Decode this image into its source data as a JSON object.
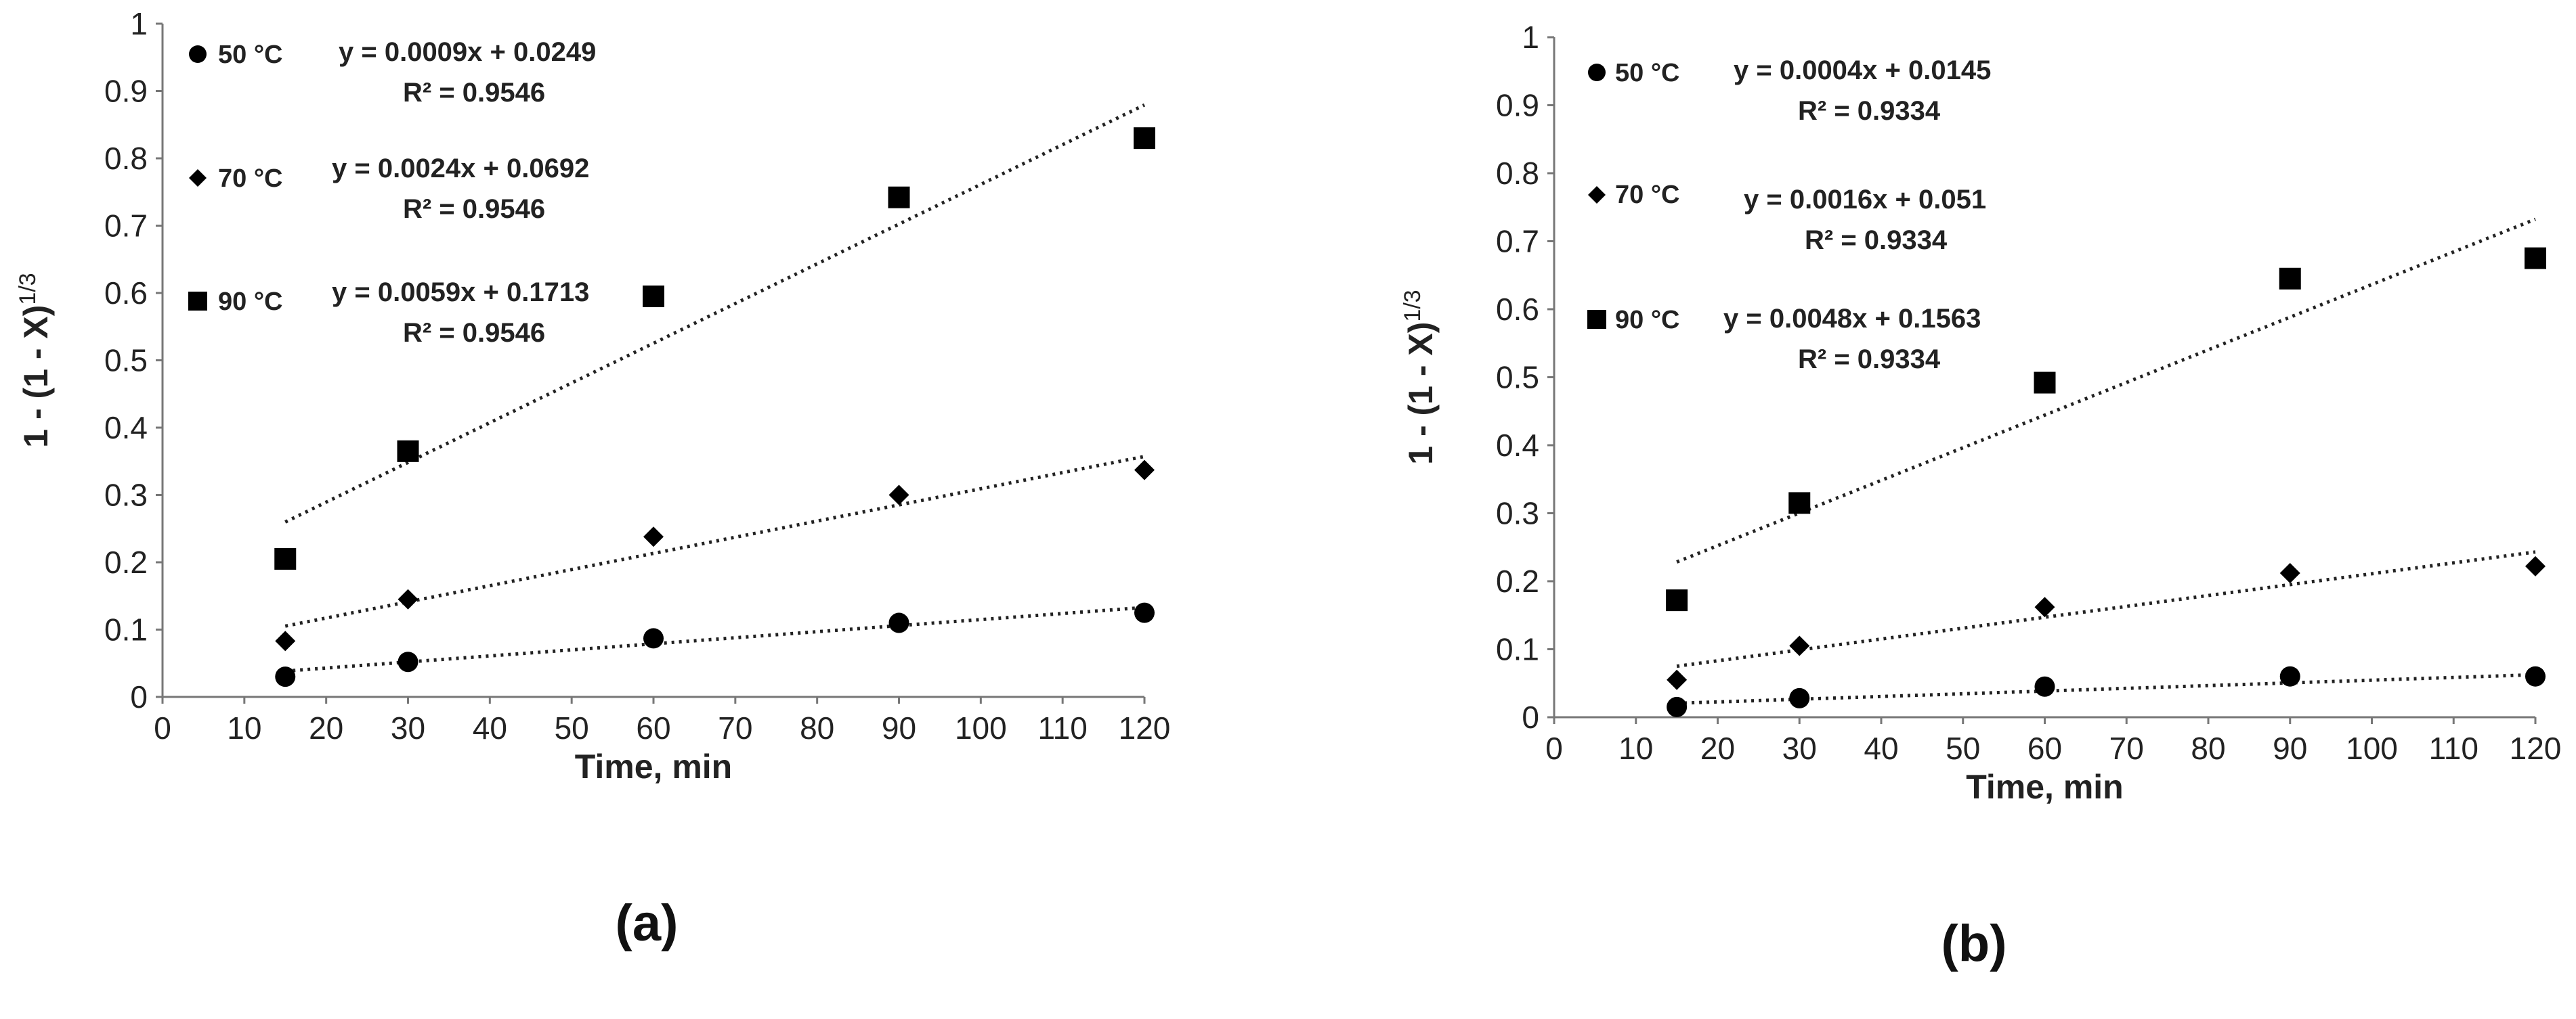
{
  "chart_data": [
    {
      "type": "scatter",
      "panel_label": "(a)",
      "xlabel": "Time, min",
      "ylabel": "1 - (1 - X)",
      "ylabel_superscript": "1/3",
      "xlim": [
        0,
        120
      ],
      "ylim": [
        0,
        1
      ],
      "xticks": [
        "0",
        "10",
        "20",
        "30",
        "40",
        "50",
        "60",
        "70",
        "80",
        "90",
        "100",
        "110",
        "120"
      ],
      "yticks": [
        "0",
        "0.1",
        "0.2",
        "0.3",
        "0.4",
        "0.5",
        "0.6",
        "0.7",
        "0.8",
        "0.9",
        "1"
      ],
      "series": [
        {
          "name": "50 °C",
          "marker": "circle",
          "x": [
            15,
            30,
            60,
            90,
            120
          ],
          "y": [
            0.03,
            0.052,
            0.087,
            0.11,
            0.125
          ],
          "fit": {
            "slope": 0.0009,
            "intercept": 0.0249
          },
          "equation": "y = 0.0009x + 0.0249",
          "r2": "R² = 0.9546"
        },
        {
          "name": "70 °C",
          "marker": "diamond",
          "x": [
            15,
            30,
            60,
            90,
            120
          ],
          "y": [
            0.083,
            0.145,
            0.238,
            0.3,
            0.337
          ],
          "fit": {
            "slope": 0.0024,
            "intercept": 0.0692
          },
          "equation": "y = 0.0024x + 0.0692",
          "r2": "R² = 0.9546"
        },
        {
          "name": "90 °C",
          "marker": "square",
          "x": [
            15,
            30,
            60,
            90,
            120
          ],
          "y": [
            0.205,
            0.365,
            0.595,
            0.742,
            0.83
          ],
          "fit": {
            "slope": 0.0059,
            "intercept": 0.1713
          },
          "equation": "y = 0.0059x + 0.1713",
          "r2": "R² = 0.9546"
        }
      ]
    },
    {
      "type": "scatter",
      "panel_label": "(b)",
      "xlabel": "Time, min",
      "ylabel": "1 - (1 - X)",
      "ylabel_superscript": "1/3",
      "xlim": [
        0,
        120
      ],
      "ylim": [
        0,
        1
      ],
      "xticks": [
        "0",
        "10",
        "20",
        "30",
        "40",
        "50",
        "60",
        "70",
        "80",
        "90",
        "100",
        "110",
        "120"
      ],
      "yticks": [
        "0",
        "0.1",
        "0.2",
        "0.3",
        "0.4",
        "0.5",
        "0.6",
        "0.7",
        "0.8",
        "0.9",
        "1"
      ],
      "series": [
        {
          "name": "50 °C",
          "marker": "circle",
          "x": [
            15,
            30,
            60,
            90,
            120
          ],
          "y": [
            0.015,
            0.028,
            0.045,
            0.06,
            0.06
          ],
          "fit": {
            "slope": 0.0004,
            "intercept": 0.0145
          },
          "equation": "y = 0.0004x + 0.0145",
          "r2": "R² = 0.9334"
        },
        {
          "name": "70 °C",
          "marker": "diamond",
          "x": [
            15,
            30,
            60,
            90,
            120
          ],
          "y": [
            0.055,
            0.105,
            0.162,
            0.212,
            0.222
          ],
          "fit": {
            "slope": 0.0016,
            "intercept": 0.051
          },
          "equation": "y = 0.0016x + 0.051",
          "r2": "R² = 0.9334"
        },
        {
          "name": "90 °C",
          "marker": "square",
          "x": [
            15,
            30,
            60,
            90,
            120
          ],
          "y": [
            0.172,
            0.315,
            0.492,
            0.645,
            0.675
          ],
          "fit": {
            "slope": 0.0048,
            "intercept": 0.1563
          },
          "equation": "y = 0.0048x + 0.1563",
          "r2": "R² = 0.9334"
        }
      ]
    }
  ]
}
